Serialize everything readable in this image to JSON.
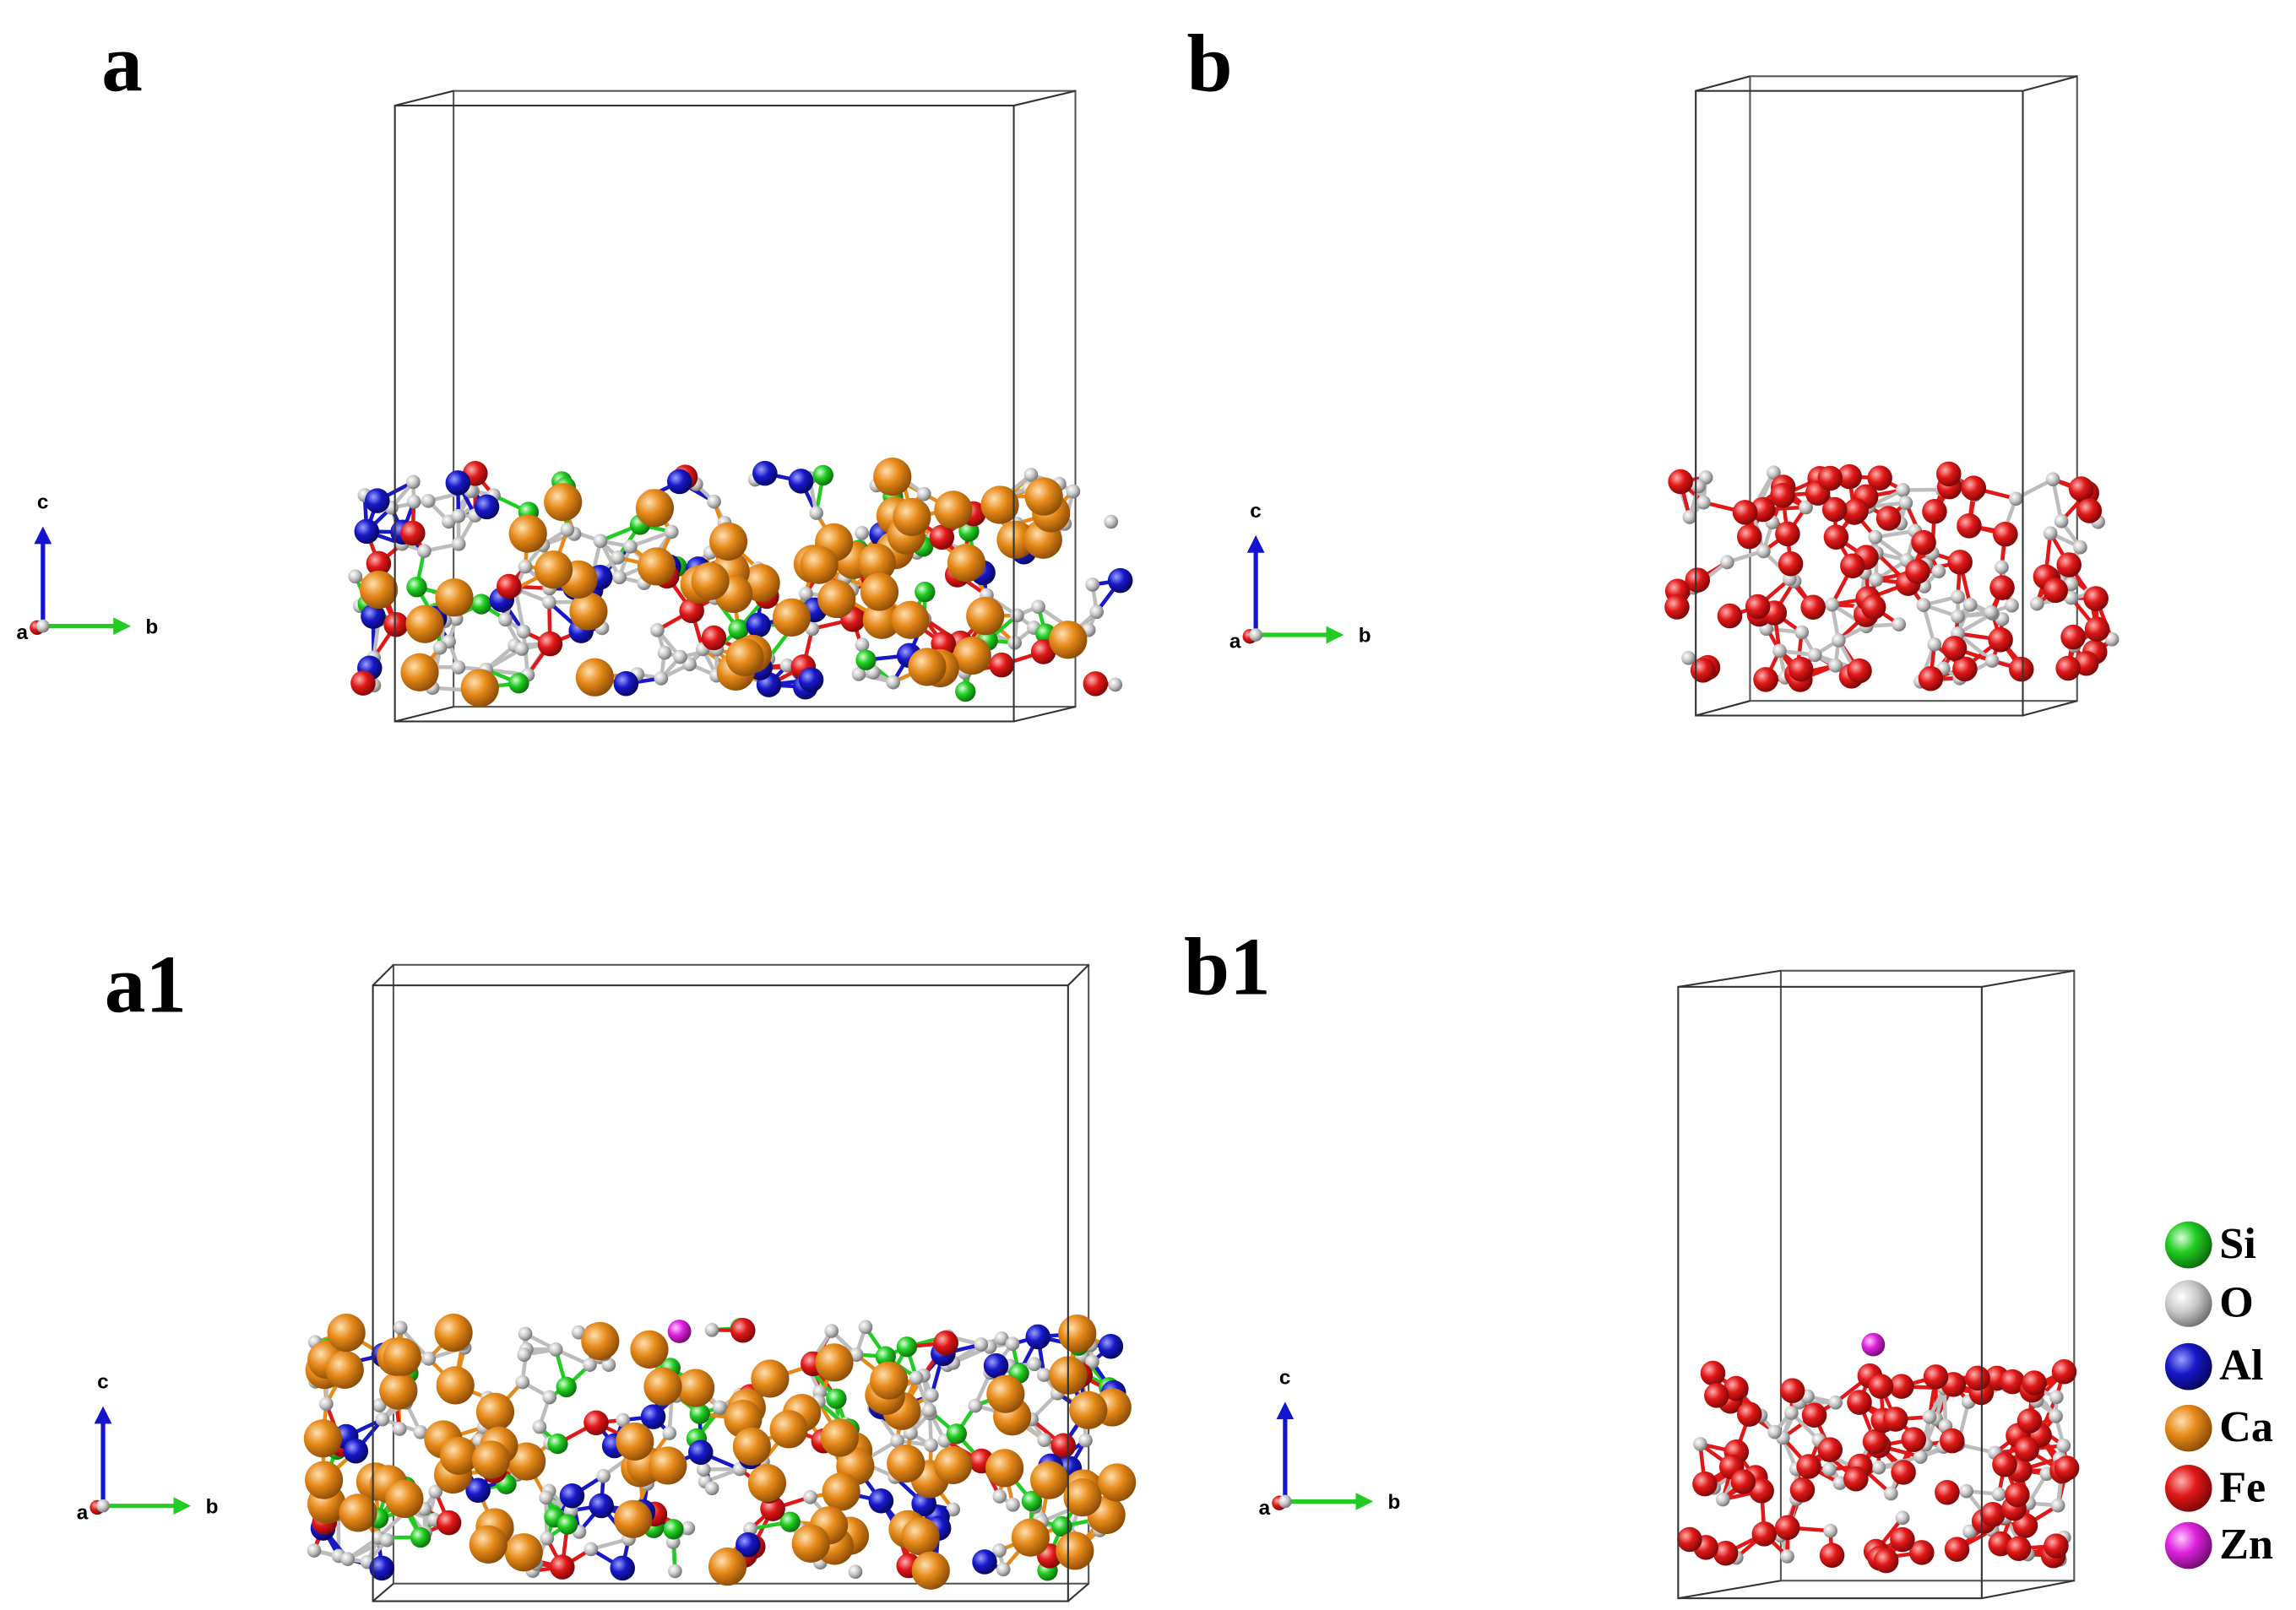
{
  "panels": [
    {
      "label": "a",
      "axis_labels": [
        "c",
        "a",
        "b"
      ]
    },
    {
      "label": "b",
      "axis_labels": [
        "c",
        "a",
        "b"
      ]
    },
    {
      "label": "a1",
      "axis_labels": [
        "c",
        "a",
        "b"
      ]
    },
    {
      "label": "b1",
      "axis_labels": [
        "c",
        "a",
        "b"
      ]
    }
  ],
  "legend": [
    "Si",
    "O",
    "Al",
    "Ca",
    "Fe",
    "Zn"
  ]
}
